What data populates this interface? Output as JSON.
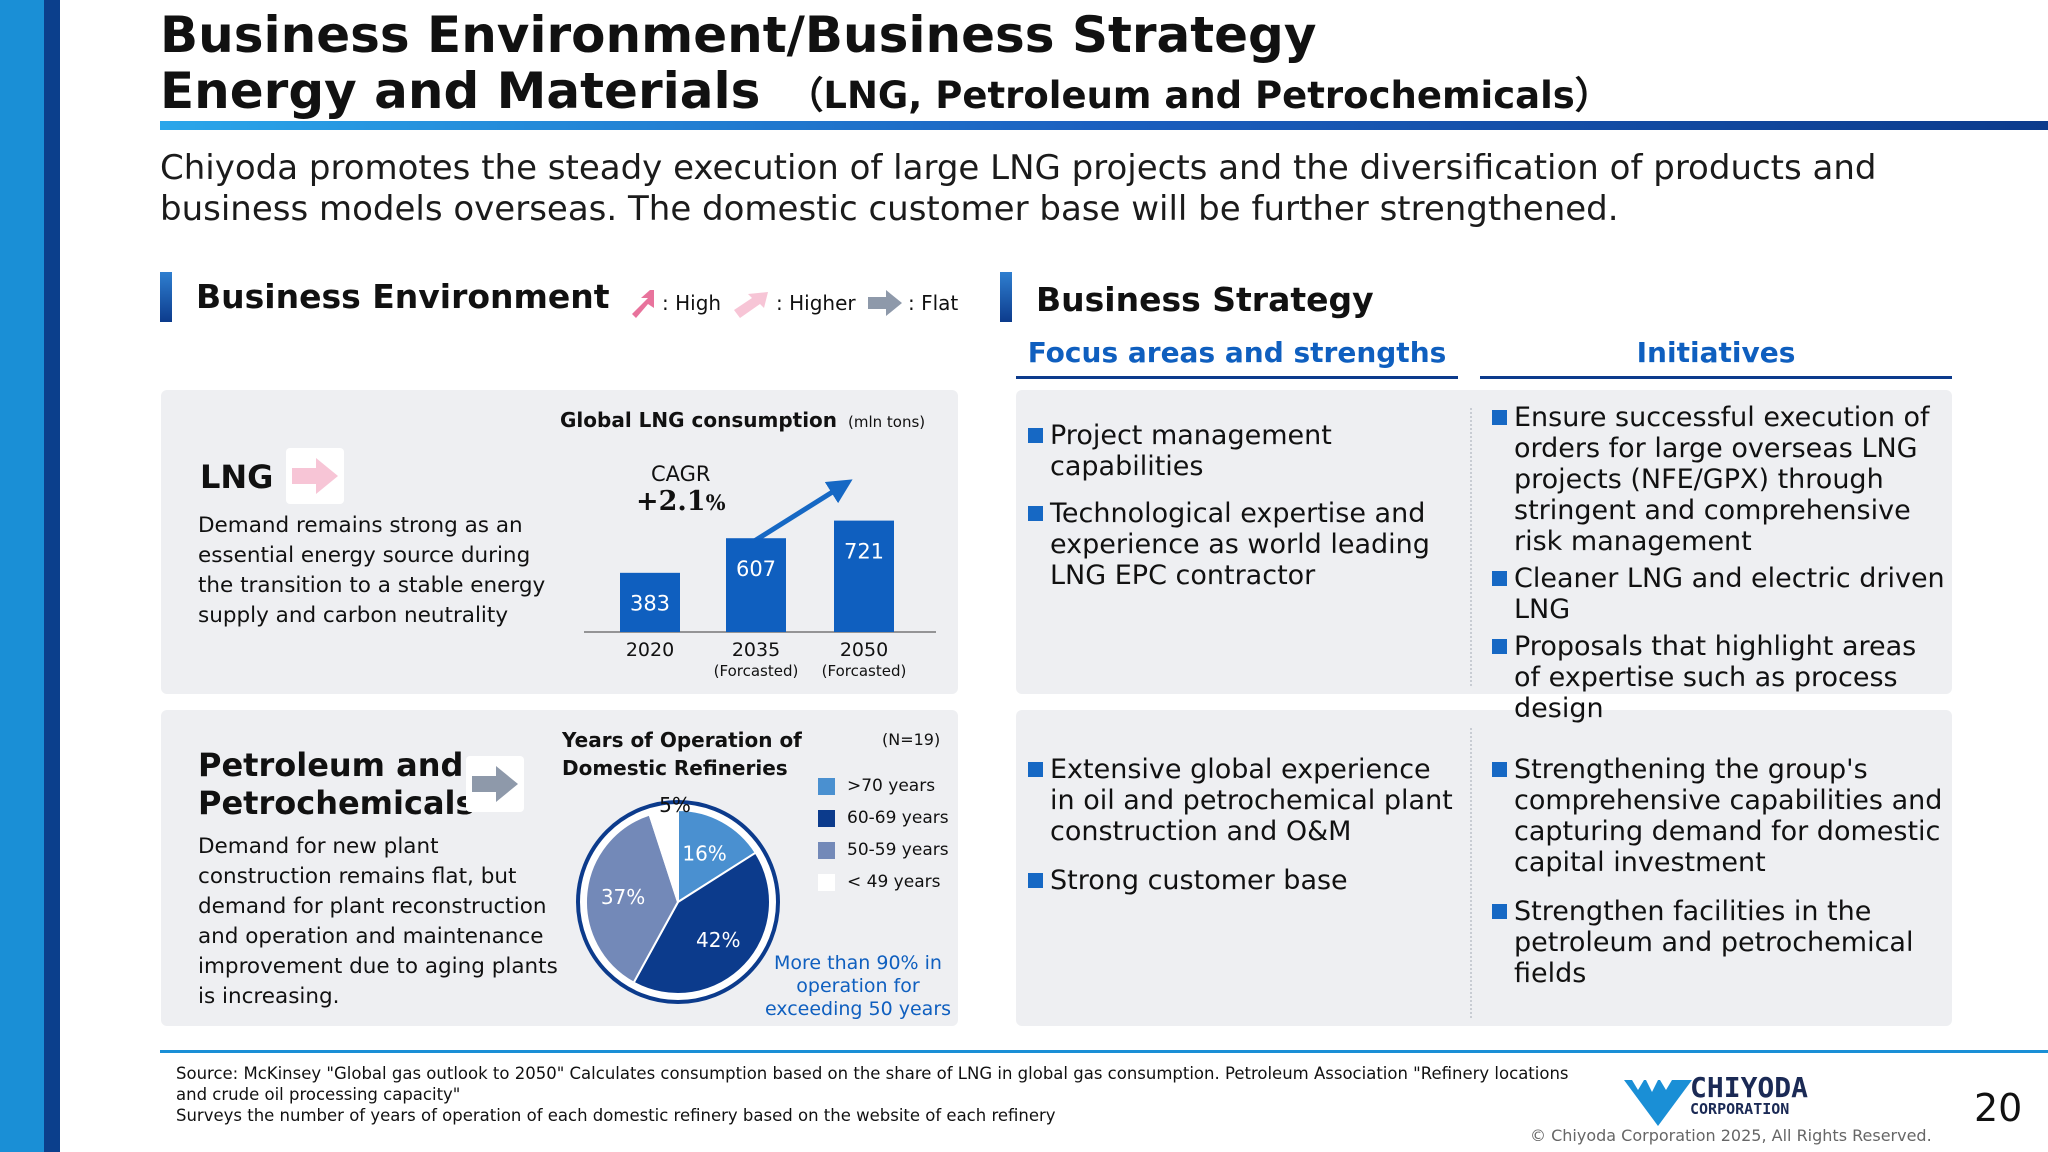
{
  "header": {
    "title_line1": "Business Environment/Business Strategy",
    "title_line2": "Energy and Materials",
    "title_line2_sub": "（LNG, Petroleum and Petrochemicals）",
    "lead_text": "Chiyoda promotes the steady execution of large LNG projects and the diversification of products and business models overseas. The domestic customer base will be further strengthened."
  },
  "environment": {
    "heading": "Business Environment",
    "legend": [
      {
        "label": ": High",
        "icon": "arrow-up-right-icon",
        "color": "#e8739c"
      },
      {
        "label": ": Higher",
        "icon": "arrow-up-right-icon",
        "color": "#f7c5d6"
      },
      {
        "label": ": Flat",
        "icon": "arrow-right-icon",
        "color": "#8e99aa"
      }
    ],
    "lng": {
      "name": "LNG",
      "description": "Demand remains strong as an essential energy source during the transition to a stable energy supply and carbon neutrality"
    },
    "petro": {
      "name_line1": "Petroleum and",
      "name_line2": "Petrochemicals",
      "description": "Demand for new plant construction remains flat, but demand for plant reconstruction and operation and maintenance improvement due to aging plants is increasing."
    }
  },
  "strategy": {
    "heading": "Business Strategy",
    "col1_heading": "Focus areas and strengths",
    "col2_heading": "Initiatives",
    "lng_focus": [
      "Project management capabilities",
      "Technological expertise and experience as world leading LNG EPC contractor"
    ],
    "lng_initiatives": [
      "Ensure successful execution of orders for large overseas LNG projects (NFE/GPX) through stringent and comprehensive risk management",
      "Cleaner LNG and electric driven LNG",
      "Proposals that highlight areas of expertise such as process design"
    ],
    "petro_focus": [
      "Extensive global experience in oil and petrochemical plant construction and O&M",
      "Strong customer base"
    ],
    "petro_initiatives": [
      "Strengthening the group's comprehensive capabilities and capturing demand for domestic capital investment",
      "Strengthen facilities in the petroleum and petrochemical fields"
    ]
  },
  "chart_data": [
    {
      "type": "bar",
      "title": "Global LNG consumption",
      "unit": "(mln tons)",
      "categories": [
        "2020",
        "2035",
        "2050"
      ],
      "category_notes": [
        "",
        "(Forcasted)",
        "(Forcasted)"
      ],
      "values": [
        383,
        607,
        721
      ],
      "ylim": [
        0,
        800
      ],
      "annotation_label": "CAGR",
      "annotation_value": "+2.1",
      "annotation_unit": "%",
      "bar_color": "#0f5fbf"
    },
    {
      "type": "pie",
      "title_line1": "Years of Operation of",
      "title_line2": "Domestic Refineries",
      "note": "(N=19)",
      "labels": [
        ">70 years",
        "60-69 years",
        "50-59 years",
        "< 49 years"
      ],
      "values": [
        16,
        42,
        37,
        5
      ],
      "value_labels": [
        "16%",
        "42%",
        "37%",
        "5%"
      ],
      "colors": [
        "#4a90d0",
        "#0c3b8c",
        "#7389b8",
        "#ffffff"
      ],
      "annotation": "More than 90% in operation for exceeding 50 years"
    }
  ],
  "footer": {
    "source_line1": "Source: McKinsey \"Global gas outlook to 2050\" Calculates consumption based on the share of LNG in global gas consumption. Petroleum Association \"Refinery locations and crude oil processing capacity\"",
    "source_line2": "Surveys the number of years of operation of each domestic refinery based on the website of each refinery",
    "logo_line1": "CHIYODA",
    "logo_line2": "CORPORATION",
    "copyright": "© Chiyoda Corporation 2025, All Rights Reserved.",
    "page_number": "20"
  }
}
